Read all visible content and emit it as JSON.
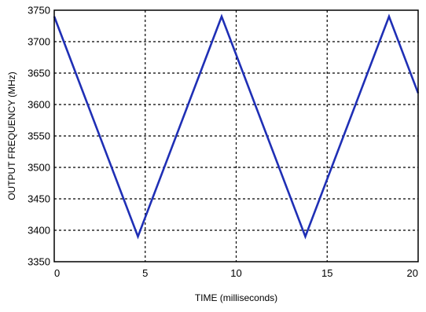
{
  "chart_data": {
    "type": "line",
    "title": "",
    "xlabel": "TIME (milliseconds)",
    "ylabel": "OUTPUT FREQUENCY (MHz)",
    "xlim": [
      0,
      20
    ],
    "ylim": [
      3350,
      3750
    ],
    "xticks": [
      0,
      5,
      10,
      15,
      20
    ],
    "yticks": [
      3350,
      3400,
      3450,
      3500,
      3550,
      3600,
      3650,
      3700,
      3750
    ],
    "grid": true,
    "grid_style": "dotted",
    "legend": "none",
    "series": [
      {
        "color": "#1f2fb5",
        "x": [
          0,
          4.6,
          9.2,
          13.8,
          18.4,
          20
        ],
        "y": [
          3740,
          3390,
          3740,
          3390,
          3740,
          3618
        ]
      }
    ]
  }
}
